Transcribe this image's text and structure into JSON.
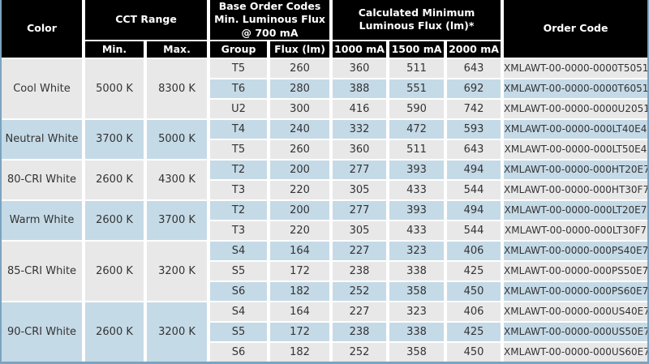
{
  "table": {
    "header": {
      "color": "Color",
      "cct_range": "CCT Range",
      "base_order_codes": "Base Order Codes\nMin. Luminous Flux\n@ 700 mA",
      "calc_min_flux": "Calculated Minimum\nLuminous Flux (lm)*",
      "order_code": "Order Code",
      "min": "Min.",
      "max": "Max.",
      "group": "Group",
      "flux": "Flux (lm)",
      "ma1000": "1000 mA",
      "ma1500": "1500 mA",
      "ma2000": "2000 mA"
    },
    "groups": [
      {
        "color": "Cool White",
        "cct_min": "5000 K",
        "cct_max": "8300 K",
        "rows": [
          {
            "group": "T5",
            "flux": "260",
            "ma1000": "360",
            "ma1500": "511",
            "ma2000": "643",
            "order_code": "XMLAWT-00-0000-0000T5051"
          },
          {
            "group": "T6",
            "flux": "280",
            "ma1000": "388",
            "ma1500": "551",
            "ma2000": "692",
            "order_code": "XMLAWT-00-0000-0000T6051"
          },
          {
            "group": "U2",
            "flux": "300",
            "ma1000": "416",
            "ma1500": "590",
            "ma2000": "742",
            "order_code": "XMLAWT-00-0000-0000U2051"
          }
        ]
      },
      {
        "color": "Neutral White",
        "cct_min": "3700 K",
        "cct_max": "5000 K",
        "rows": [
          {
            "group": "T4",
            "flux": "240",
            "ma1000": "332",
            "ma1500": "472",
            "ma2000": "593",
            "order_code": "XMLAWT-00-0000-000LT40E4"
          },
          {
            "group": "T5",
            "flux": "260",
            "ma1000": "360",
            "ma1500": "511",
            "ma2000": "643",
            "order_code": "XMLAWT-00-0000-000LT50E4"
          }
        ]
      },
      {
        "color": "80-CRI White",
        "cct_min": "2600 K",
        "cct_max": "4300 K",
        "rows": [
          {
            "group": "T2",
            "flux": "200",
            "ma1000": "277",
            "ma1500": "393",
            "ma2000": "494",
            "order_code": "XMLAWT-00-0000-000HT20E7"
          },
          {
            "group": "T3",
            "flux": "220",
            "ma1000": "305",
            "ma1500": "433",
            "ma2000": "544",
            "order_code": "XMLAWT-00-0000-000HT30F7"
          }
        ]
      },
      {
        "color": "Warm White",
        "cct_min": "2600 K",
        "cct_max": "3700 K",
        "rows": [
          {
            "group": "T2",
            "flux": "200",
            "ma1000": "277",
            "ma1500": "393",
            "ma2000": "494",
            "order_code": "XMLAWT-00-0000-000LT20E7"
          },
          {
            "group": "T3",
            "flux": "220",
            "ma1000": "305",
            "ma1500": "433",
            "ma2000": "544",
            "order_code": "XMLAWT-00-0000-000LT30F7"
          }
        ]
      },
      {
        "color": "85-CRI White",
        "cct_min": "2600 K",
        "cct_max": "3200 K",
        "rows": [
          {
            "group": "S4",
            "flux": "164",
            "ma1000": "227",
            "ma1500": "323",
            "ma2000": "406",
            "order_code": "XMLAWT-00-0000-000PS40E7"
          },
          {
            "group": "S5",
            "flux": "172",
            "ma1000": "238",
            "ma1500": "338",
            "ma2000": "425",
            "order_code": "XMLAWT-00-0000-000PS50E7"
          },
          {
            "group": "S6",
            "flux": "182",
            "ma1000": "252",
            "ma1500": "358",
            "ma2000": "450",
            "order_code": "XMLAWT-00-0000-000PS60E7"
          }
        ]
      },
      {
        "color": "90-CRI White",
        "cct_min": "2600 K",
        "cct_max": "3200 K",
        "rows": [
          {
            "group": "S4",
            "flux": "164",
            "ma1000": "227",
            "ma1500": "323",
            "ma2000": "406",
            "order_code": "XMLAWT-00-0000-000US40E7"
          },
          {
            "group": "S5",
            "flux": "172",
            "ma1000": "238",
            "ma1500": "338",
            "ma2000": "425",
            "order_code": "XMLAWT-00-0000-000US50E7"
          },
          {
            "group": "S6",
            "flux": "182",
            "ma1000": "252",
            "ma1500": "358",
            "ma2000": "450",
            "order_code": "XMLAWT-00-0000-000US60E7"
          }
        ]
      }
    ]
  },
  "colors": {
    "header_bg": "#000000",
    "header_text": "#ffffff",
    "row_alt_gray": "#e8e8e8",
    "row_alt_blue": "#c5dae7",
    "border_blue": "#7ba3c0",
    "cell_text": "#333333"
  }
}
